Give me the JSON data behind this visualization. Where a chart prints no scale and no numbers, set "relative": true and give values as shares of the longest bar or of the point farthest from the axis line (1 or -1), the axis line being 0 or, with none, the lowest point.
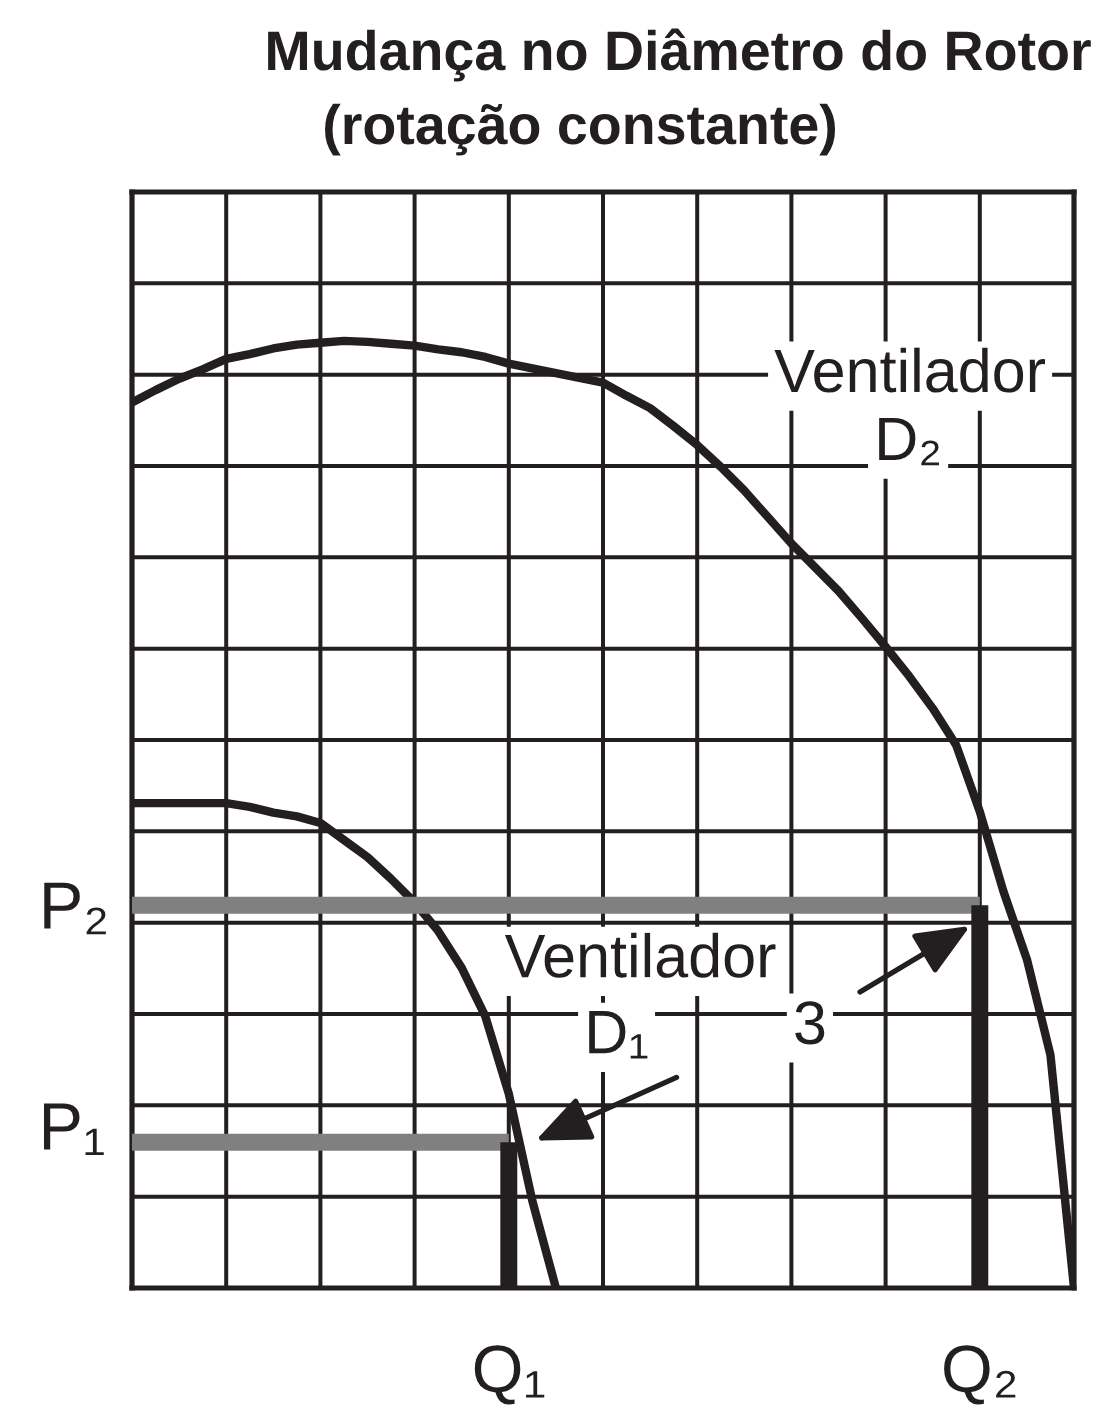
{
  "chart_data": {
    "type": "line",
    "title": "Mudança no Diâmetro do Rotor",
    "subtitle": "(rotação constante)",
    "relative": true,
    "grid": true,
    "categories": [
      null,
      null,
      null,
      null,
      null,
      null,
      null,
      null,
      null,
      null,
      null,
      null,
      null,
      null,
      null,
      null,
      "Q₁",
      null,
      null,
      null,
      null,
      null,
      null,
      null,
      null,
      null,
      null,
      null,
      null,
      null,
      null,
      null,
      null,
      null,
      null,
      null,
      "Q₂",
      null,
      null,
      null,
      null
    ],
    "series": [
      {
        "name": "Ventilador\nD₂",
        "color": "#231f20",
        "values": [
          0.935,
          0.948,
          0.96,
          0.97,
          0.981,
          0.986,
          0.992,
          0.996,
          0.998,
          1,
          0.999,
          0.997,
          0.995,
          0.991,
          0.988,
          0.983,
          0.976,
          0.971,
          0.966,
          0.961,
          0.956,
          0.942,
          0.929,
          0.91,
          0.89,
          0.867,
          0.842,
          0.814,
          0.786,
          0.761,
          0.736,
          0.707,
          0.677,
          0.646,
          0.612,
          0.573,
          0.503,
          0.419,
          0.347,
          0.246,
          0
        ]
      },
      {
        "name": "Ventilador\nD₁",
        "color": "#231f20",
        "values": [
          0.512,
          0.512,
          0.512,
          0.512,
          0.512,
          0.508,
          0.502,
          0.498,
          0.491,
          0.473,
          0.455,
          0.432,
          0.407,
          0.377,
          0.338,
          0.287,
          0.205,
          0.092,
          0,
          null,
          null,
          null,
          null,
          null,
          null,
          null,
          null,
          null,
          null,
          null,
          null,
          null,
          null,
          null,
          null,
          null,
          null,
          null,
          null,
          null,
          null
        ]
      },
      {
        "name": "P₂",
        "color": "#808080",
        "values": [
          0.404,
          0.404,
          0.404,
          0.404,
          0.404,
          0.404,
          0.404,
          0.404,
          0.404,
          0.404,
          0.404,
          0.404,
          0.404,
          0.404,
          0.404,
          0.404,
          0.404,
          0.404,
          0.404,
          0.404,
          0.404,
          0.404,
          0.404,
          0.404,
          0.404,
          0.404,
          0.404,
          0.404,
          0.404,
          0.404,
          0.404,
          0.404,
          0.404,
          0.404,
          0.404,
          0.404,
          0.404,
          null,
          null,
          null,
          null
        ]
      },
      {
        "name": "P₁",
        "color": "#808080",
        "values": [
          0.154,
          0.154,
          0.154,
          0.154,
          0.154,
          0.154,
          0.154,
          0.154,
          0.154,
          0.154,
          0.154,
          0.154,
          0.154,
          0.154,
          0.154,
          0.154,
          0.154,
          null,
          null,
          null,
          null,
          null,
          null,
          null,
          null,
          null,
          null,
          null,
          null,
          null,
          null,
          null,
          null,
          null,
          null,
          null,
          null,
          null,
          null,
          null,
          null
        ]
      },
      {
        "type": "bar",
        "color": "#231f20",
        "values": [
          null,
          null,
          null,
          null,
          null,
          null,
          null,
          null,
          null,
          null,
          null,
          null,
          null,
          null,
          null,
          null,
          0.154,
          null,
          null,
          null,
          null,
          null,
          null,
          null,
          null,
          null,
          null,
          null,
          null,
          null,
          null,
          null,
          null,
          null,
          null,
          null,
          0.404,
          null,
          null,
          null,
          null
        ]
      }
    ],
    "annotations": [
      "3"
    ]
  }
}
